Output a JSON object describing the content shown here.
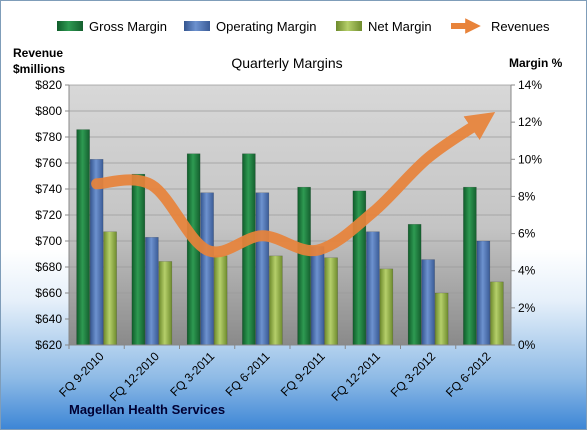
{
  "chart_data": {
    "type": "bar",
    "title": "Quarterly Margins",
    "footer": "Magellan Health Services",
    "left_axis": {
      "label_line1": "Revenue",
      "label_line2": "$millions",
      "min": 620,
      "max": 820,
      "step": 20,
      "ticks": [
        "$620",
        "$640",
        "$660",
        "$680",
        "$700",
        "$720",
        "$740",
        "$760",
        "$780",
        "$800",
        "$820"
      ]
    },
    "right_axis": {
      "label": "Margin %",
      "min": 0,
      "max": 14,
      "step": 2,
      "ticks": [
        "0%",
        "2%",
        "4%",
        "6%",
        "8%",
        "10%",
        "12%",
        "14%"
      ]
    },
    "categories": [
      "FQ 9-2010",
      "FQ 12-2010",
      "FQ 3-2011",
      "FQ 6-2011",
      "FQ 9-2011",
      "FQ 12-2011",
      "FQ 3-2012",
      "FQ 6-2012"
    ],
    "series": [
      {
        "name": "Gross Margin",
        "axis": "right",
        "color": "#1e7b3c",
        "values": [
          11.6,
          9.2,
          10.3,
          10.3,
          8.5,
          8.3,
          6.5,
          8.5
        ]
      },
      {
        "name": "Operating Margin",
        "axis": "right",
        "color": "#4a6fb0",
        "values": [
          10.0,
          5.8,
          8.2,
          8.2,
          5.3,
          6.1,
          4.6,
          5.6
        ]
      },
      {
        "name": "Net Margin",
        "axis": "right",
        "color": "#8aa83c",
        "values": [
          6.1,
          4.5,
          4.8,
          4.8,
          4.7,
          4.1,
          2.8,
          3.4
        ]
      },
      {
        "name": "Revenues",
        "axis": "left",
        "color": "#e8833a",
        "type": "line",
        "values": [
          744,
          743,
          693,
          704,
          693,
          722,
          764,
          793
        ]
      }
    ],
    "grid": true,
    "legend": "top"
  }
}
